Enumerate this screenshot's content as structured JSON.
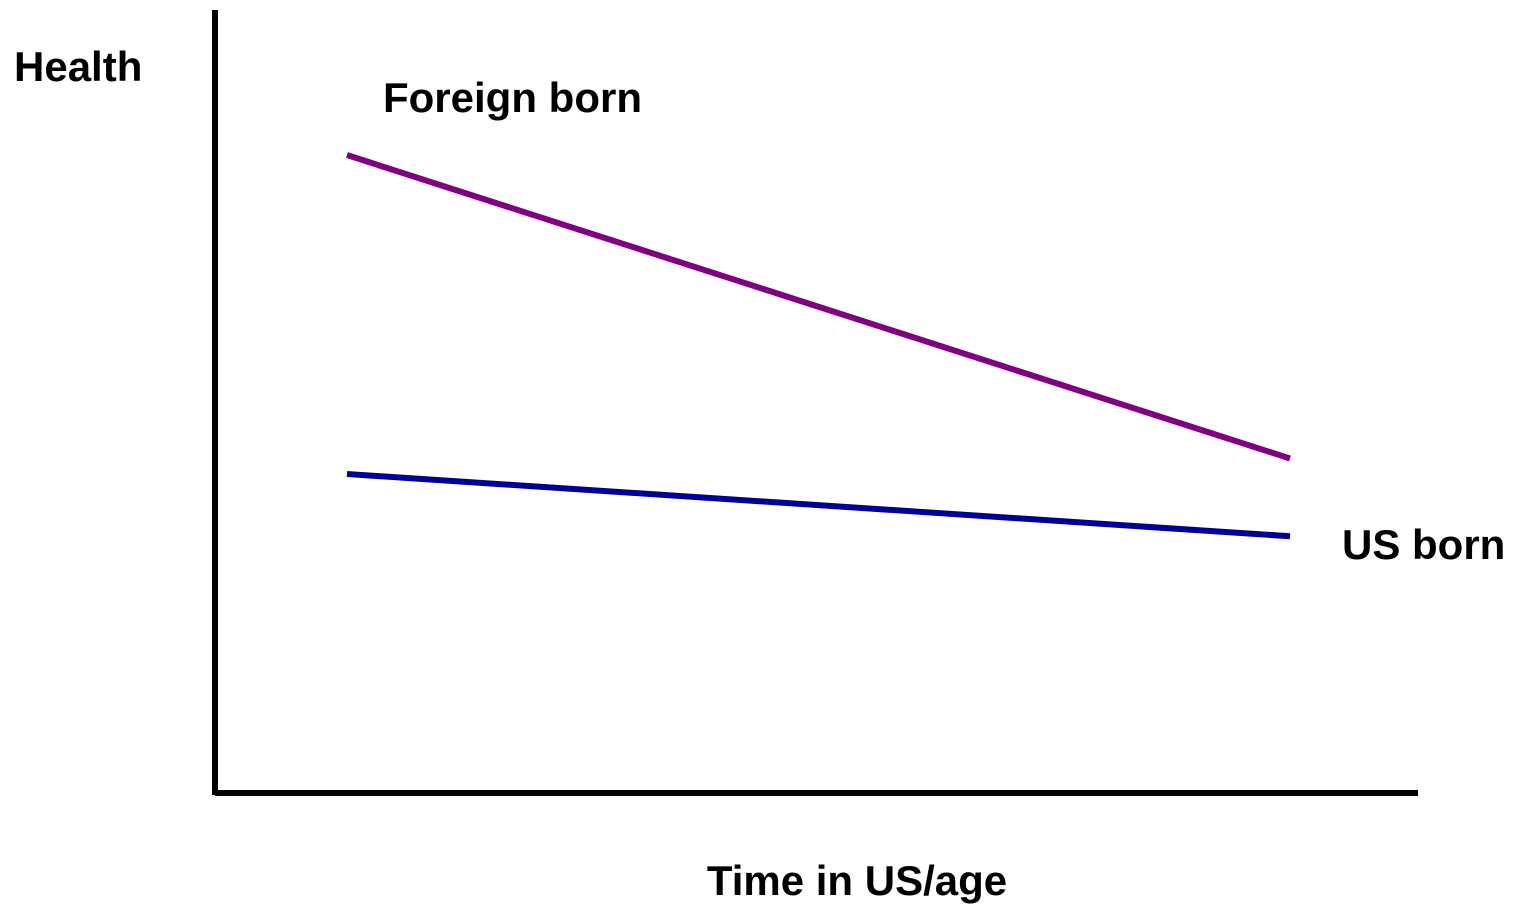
{
  "chart_data": {
    "type": "line",
    "title": "",
    "ylabel": "Health",
    "xlabel": "Time in US/age",
    "x": [
      0,
      1
    ],
    "ylim": [
      0,
      1
    ],
    "xlim": [
      0,
      1
    ],
    "grid": false,
    "legend": "inline-labels",
    "series": [
      {
        "name": "Foreign born",
        "values": [
          0.82,
          0.43
        ],
        "color": "#800080"
      },
      {
        "name": "US born",
        "values": [
          0.41,
          0.33
        ],
        "color": "#000099"
      }
    ],
    "axis_color": "#000000"
  }
}
